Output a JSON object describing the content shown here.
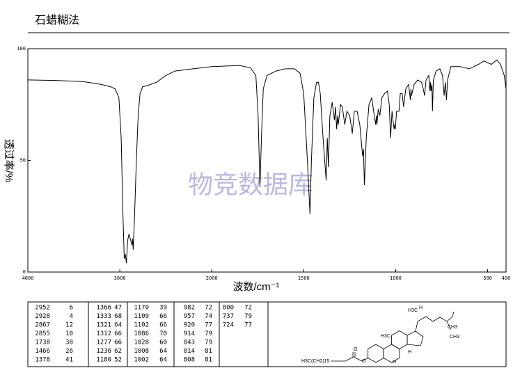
{
  "title": "石蜡糊法",
  "chart_data": {
    "type": "line",
    "ylabel": "透过率/%",
    "xlabel": "波数/cm⁻¹",
    "watermark": "物竞数据库",
    "color": "#000000",
    "xlim": [
      4000,
      400
    ],
    "xbreak": 2000,
    "xticks": [
      4000,
      3000,
      2000,
      1500,
      1000,
      500,
      400
    ],
    "ylim": [
      0,
      100
    ],
    "yticks": [
      0,
      50,
      100
    ],
    "x": [
      4000,
      3700,
      3400,
      3200,
      3100,
      3050,
      3010,
      2985,
      2965,
      2952,
      2940,
      2928,
      2915,
      2900,
      2880,
      2867,
      2860,
      2855,
      2840,
      2820,
      2800,
      2780,
      2750,
      2700,
      2600,
      2500,
      2400,
      2200,
      2000,
      1850,
      1790,
      1760,
      1748,
      1738,
      1730,
      1720,
      1700,
      1650,
      1600,
      1550,
      1520,
      1500,
      1480,
      1466,
      1458,
      1445,
      1430,
      1420,
      1410,
      1395,
      1378,
      1372,
      1366,
      1358,
      1345,
      1333,
      1327,
      1321,
      1316,
      1312,
      1300,
      1290,
      1277,
      1265,
      1250,
      1236,
      1225,
      1210,
      1195,
      1180,
      1175,
      1170,
      1160,
      1145,
      1130,
      1120,
      1109,
      1105,
      1102,
      1095,
      1086,
      1075,
      1060,
      1045,
      1035,
      1028,
      1020,
      1012,
      1008,
      1005,
      1002,
      995,
      982,
      975,
      965,
      957,
      945,
      930,
      920,
      917,
      914,
      900,
      880,
      860,
      850,
      843,
      835,
      820,
      814,
      811,
      808,
      803,
      800,
      795,
      780,
      760,
      745,
      737,
      730,
      724,
      718,
      700,
      650,
      600,
      550,
      520,
      480,
      450,
      430,
      410,
      400
    ],
    "values": [
      86,
      85.8,
      85.3,
      84,
      83,
      82,
      78,
      60,
      25,
      6,
      8,
      4,
      14,
      17,
      14,
      12,
      15,
      10,
      25,
      50,
      70,
      80,
      83,
      83.5,
      85,
      88,
      90,
      91,
      92,
      92.5,
      91.5,
      88,
      70,
      38,
      60,
      82,
      88,
      90,
      91,
      91,
      89,
      80,
      50,
      26,
      50,
      78,
      85,
      85,
      80,
      60,
      41,
      60,
      47,
      70,
      76,
      68,
      74,
      64,
      70,
      66,
      75,
      74,
      66,
      72,
      70,
      62,
      72,
      72,
      66,
      52,
      55,
      39,
      60,
      75,
      78,
      72,
      66,
      70,
      66,
      73,
      70,
      78,
      80,
      81,
      75,
      60,
      72,
      66,
      64,
      66,
      64,
      72,
      72,
      80,
      80,
      74,
      82,
      84,
      77,
      82,
      79,
      84,
      86,
      85,
      82,
      79,
      86,
      88,
      81,
      85,
      81,
      84,
      72,
      86,
      90,
      91,
      88,
      79,
      85,
      77,
      86,
      92,
      92,
      91,
      93,
      94.5,
      93,
      95,
      93,
      88,
      82
    ]
  },
  "peak_table": [
    [
      2952,
      6
    ],
    [
      2928,
      4
    ],
    [
      2867,
      12
    ],
    [
      2855,
      10
    ],
    [
      1738,
      38
    ],
    [
      1466,
      26
    ],
    [
      1378,
      41
    ],
    [
      1366,
      47
    ],
    [
      1333,
      68
    ],
    [
      1321,
      64
    ],
    [
      1312,
      66
    ],
    [
      1277,
      66
    ],
    [
      1236,
      62
    ],
    [
      1180,
      52
    ],
    [
      1170,
      39
    ],
    [
      1109,
      66
    ],
    [
      1102,
      66
    ],
    [
      1086,
      70
    ],
    [
      1028,
      60
    ],
    [
      1008,
      64
    ],
    [
      1002,
      64
    ],
    [
      982,
      72
    ],
    [
      957,
      74
    ],
    [
      920,
      77
    ],
    [
      914,
      79
    ],
    [
      843,
      79
    ],
    [
      814,
      81
    ],
    [
      808,
      81
    ],
    [
      800,
      72
    ],
    [
      737,
      79
    ],
    [
      724,
      77
    ]
  ],
  "structure_labels": [
    "H3C",
    "H",
    "CH3",
    "CH3",
    "H3C",
    "H",
    "H",
    "H3C(CH2)15",
    "O",
    "O"
  ]
}
